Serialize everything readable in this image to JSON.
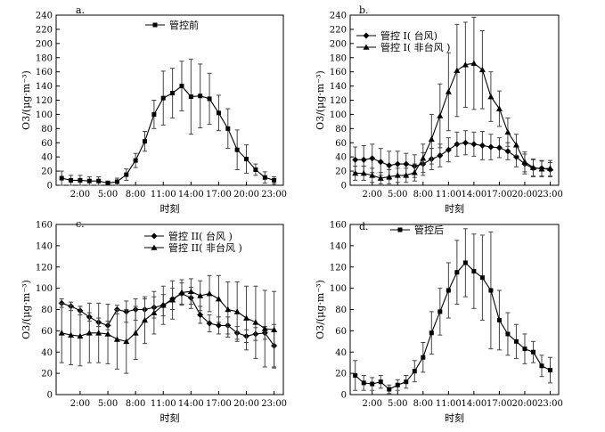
{
  "figure_text": {
    "x_axis_label": "时刻",
    "y_axis_label": "O3/(μg·m⁻³)"
  },
  "chart_data": [
    {
      "type": "line",
      "panel_label": "a.",
      "x": [
        0,
        1,
        2,
        3,
        4,
        5,
        6,
        7,
        8,
        9,
        10,
        11,
        12,
        13,
        14,
        15,
        16,
        17,
        18,
        19,
        20,
        21,
        22,
        23
      ],
      "xticks": [
        "2:00",
        "5:00",
        "8:00",
        "11:00",
        "14:00",
        "17:00",
        "20:00",
        "23:00"
      ],
      "xtick_values": [
        2,
        5,
        8,
        11,
        14,
        17,
        20,
        23
      ],
      "xlim": [
        -0.6,
        24
      ],
      "ylim": [
        0,
        240
      ],
      "yticks": [
        0,
        20,
        40,
        60,
        80,
        100,
        120,
        140,
        160,
        180,
        200,
        220,
        240
      ],
      "xlabel": "时刻",
      "ylabel": "O3/(μg·m⁻³)",
      "series": [
        {
          "name": "管控前",
          "marker": "square",
          "values": [
            10,
            7,
            7,
            6,
            6,
            3,
            5,
            15,
            35,
            62,
            100,
            123,
            130,
            140,
            125,
            126,
            122,
            102,
            80,
            50,
            37,
            22,
            11,
            7
          ],
          "err": [
            10,
            7,
            7,
            6,
            6,
            3,
            5,
            8,
            10,
            14,
            20,
            38,
            35,
            35,
            53,
            45,
            36,
            25,
            28,
            28,
            20,
            8,
            8,
            5
          ]
        }
      ]
    },
    {
      "type": "line",
      "panel_label": "b.",
      "x": [
        0,
        1,
        2,
        3,
        4,
        5,
        6,
        7,
        8,
        9,
        10,
        11,
        12,
        13,
        14,
        15,
        16,
        17,
        18,
        19,
        20,
        21,
        22,
        23
      ],
      "xticks": [
        "2:00",
        "5:00",
        "8:00",
        "11:00",
        "14:00",
        "17:00",
        "20:00",
        "23:00"
      ],
      "xtick_values": [
        2,
        5,
        8,
        11,
        14,
        17,
        20,
        23
      ],
      "xlim": [
        -0.6,
        24
      ],
      "ylim": [
        0,
        240
      ],
      "yticks": [
        0,
        20,
        40,
        60,
        80,
        100,
        120,
        140,
        160,
        180,
        200,
        220,
        240
      ],
      "xlabel": "时刻",
      "ylabel": "O3/(μg·m⁻³)",
      "series": [
        {
          "name": "管控 I( 台风)",
          "marker": "diamond",
          "values": [
            36,
            36,
            38,
            33,
            28,
            30,
            30,
            27,
            30,
            37,
            42,
            50,
            58,
            60,
            58,
            56,
            54,
            53,
            48,
            40,
            30,
            24,
            24,
            22
          ],
          "err": [
            18,
            20,
            20,
            19,
            20,
            18,
            15,
            16,
            16,
            15,
            16,
            17,
            17,
            17,
            17,
            20,
            18,
            14,
            12,
            14,
            14,
            12,
            11,
            10
          ]
        },
        {
          "name": "管控 I( 非台风 )",
          "marker": "triangle",
          "values": [
            17,
            17,
            14,
            10,
            12,
            14,
            14,
            18,
            38,
            65,
            98,
            132,
            162,
            170,
            172,
            163,
            125,
            108,
            75,
            57,
            33,
            25,
            23,
            24
          ],
          "err": [
            10,
            10,
            10,
            8,
            10,
            10,
            10,
            12,
            20,
            35,
            45,
            55,
            65,
            60,
            65,
            55,
            35,
            25,
            20,
            15,
            14,
            12,
            11,
            11
          ]
        }
      ]
    },
    {
      "type": "line",
      "panel_label": "c.",
      "x": [
        0,
        1,
        2,
        3,
        4,
        5,
        6,
        7,
        8,
        9,
        10,
        11,
        12,
        13,
        14,
        15,
        16,
        17,
        18,
        19,
        20,
        21,
        22,
        23
      ],
      "xticks": [
        "2:00",
        "5:00",
        "8:00",
        "11:00",
        "14:00",
        "17:00",
        "20:00",
        "23:00"
      ],
      "xtick_values": [
        2,
        5,
        8,
        11,
        14,
        17,
        20,
        23
      ],
      "xlim": [
        -0.6,
        24
      ],
      "ylim": [
        0,
        160
      ],
      "yticks": [
        0,
        20,
        40,
        60,
        80,
        100,
        120,
        140,
        160
      ],
      "xlabel": "时刻",
      "ylabel": "O3/(μg·m⁻³)",
      "series": [
        {
          "name": "管控 II( 台风 )",
          "marker": "diamond",
          "values": [
            86,
            83,
            79,
            73,
            68,
            65,
            80,
            78,
            80,
            80,
            82,
            84,
            90,
            95,
            91,
            75,
            67,
            65,
            65,
            58,
            55,
            57,
            58,
            46
          ],
          "err": [
            4,
            4,
            4,
            4,
            4,
            4,
            4,
            10,
            10,
            10,
            10,
            10,
            10,
            10,
            10,
            8,
            8,
            8,
            8,
            6,
            6,
            6,
            6,
            20
          ]
        },
        {
          "name": "管控 II( 非台风 )",
          "marker": "triangle",
          "values": [
            58,
            56,
            55,
            58,
            58,
            57,
            52,
            50,
            58,
            70,
            77,
            84,
            89,
            96,
            97,
            93,
            95,
            90,
            80,
            78,
            72,
            68,
            62,
            61
          ],
          "err": [
            28,
            28,
            28,
            28,
            28,
            28,
            28,
            30,
            25,
            22,
            20,
            18,
            18,
            12,
            12,
            14,
            17,
            22,
            26,
            28,
            30,
            34,
            36,
            36
          ]
        }
      ]
    },
    {
      "type": "line",
      "panel_label": "d.",
      "x": [
        0,
        1,
        2,
        3,
        4,
        5,
        6,
        7,
        8,
        9,
        10,
        11,
        12,
        13,
        14,
        15,
        16,
        17,
        18,
        19,
        20,
        21,
        22,
        23
      ],
      "xticks": [
        "2:00",
        "5:00",
        "8:00",
        "11:00",
        "14:00",
        "17:00",
        "20:00",
        "23:00"
      ],
      "xtick_values": [
        2,
        5,
        8,
        11,
        14,
        17,
        20,
        23
      ],
      "xlim": [
        -0.6,
        24
      ],
      "ylim": [
        0,
        160
      ],
      "yticks": [
        0,
        20,
        40,
        60,
        80,
        100,
        120,
        140,
        160
      ],
      "xlabel": "时刻",
      "ylabel": "O3/(μg·m⁻³)",
      "series": [
        {
          "name": "管控后",
          "marker": "square",
          "values": [
            18,
            11,
            10,
            12,
            5,
            9,
            12,
            22,
            35,
            58,
            78,
            98,
            115,
            124,
            116,
            110,
            98,
            70,
            57,
            50,
            43,
            40,
            27,
            23
          ],
          "err": [
            14,
            7,
            6,
            6,
            4,
            5,
            6,
            10,
            14,
            20,
            22,
            26,
            30,
            32,
            35,
            40,
            55,
            28,
            20,
            16,
            14,
            10,
            10,
            12
          ]
        }
      ]
    }
  ]
}
